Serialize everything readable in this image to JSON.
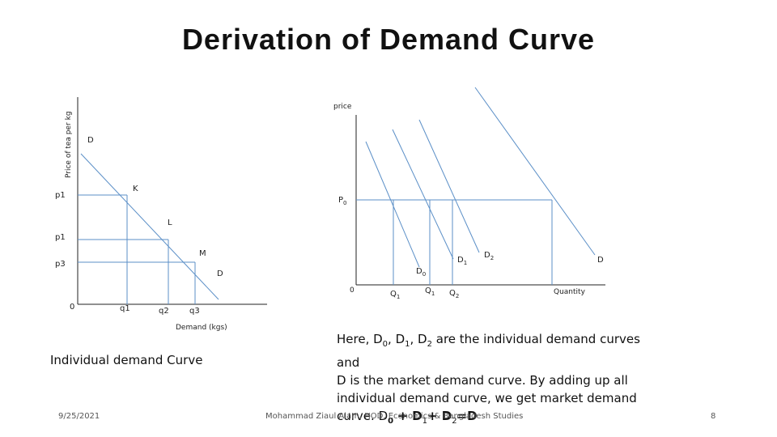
{
  "title": "Derivation of Demand Curve",
  "left_chart": {
    "y_axis_label": "Price of tea per kg",
    "x_axis_label": "Demand (kgs)",
    "curve_label_top": "D",
    "curve_label_bottom": "D",
    "points": [
      "K",
      "L",
      "M"
    ],
    "price_labels": [
      "p1",
      "p1",
      "p3"
    ],
    "origin": "0",
    "quantity_labels": [
      "q1",
      "q2",
      "q3"
    ],
    "caption": "Individual demand Curve"
  },
  "right_chart": {
    "y_axis_label": "price",
    "x_axis_label": "Quantity",
    "price_label": "P0",
    "origin": "0",
    "curves": [
      "D0",
      "D1",
      "D2",
      "D"
    ],
    "quantity_labels": [
      "Q1",
      "Q1",
      "Q2"
    ]
  },
  "description": {
    "line1_a": "Here, D",
    "line1_b": ", D",
    "line1_c": ", D",
    "line1_d": " are the individual demand curves and",
    "sub0": "0",
    "sub1": "1",
    "sub2": "2",
    "line2": "D is the market demand curve. By adding up all",
    "line3": "individual demand curve, we get market demand",
    "line4_a": "curve. D",
    "line4_b": " + D",
    "line4_c": "+ D",
    "line4_d": "=D"
  },
  "footer": {
    "date": "9/25/2021",
    "author": "Mohammad Ziaul Alam, HOD, Economics & Bangladesh Studies",
    "page": "8"
  },
  "colors": {
    "line": "#5b8fc7",
    "axis": "#222222"
  }
}
